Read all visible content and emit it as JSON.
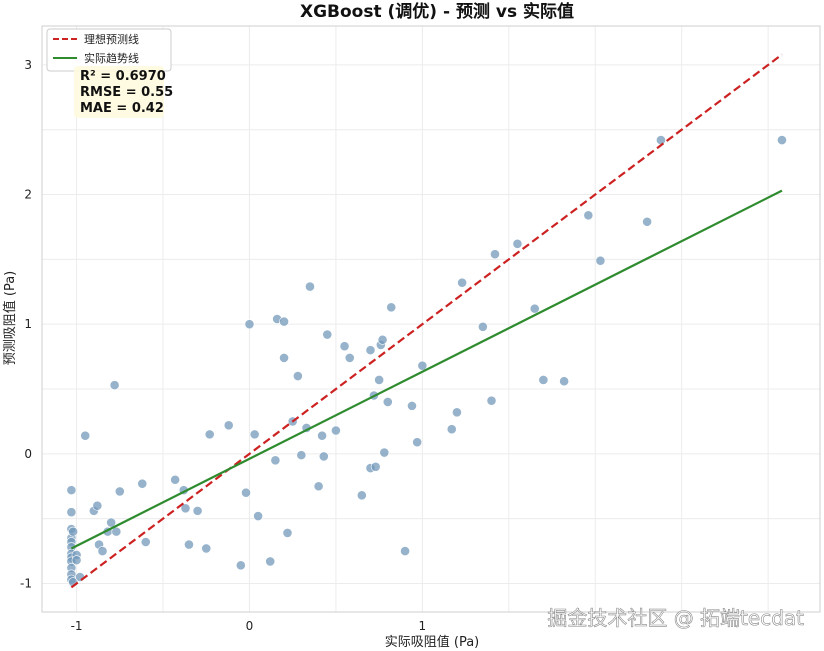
{
  "chart_data": {
    "type": "scatter",
    "title": "XGBoost (调优) - 预测 vs 实际值",
    "xlabel": "实际吸阻值 (Pa)",
    "ylabel": "预测吸阻值 (Pa)",
    "xlim": [
      -1.2,
      3.3
    ],
    "ylim": [
      -1.22,
      3.3
    ],
    "xticks": [
      -1,
      0,
      1
    ],
    "yticks": [
      -1,
      0,
      1,
      2,
      3
    ],
    "grid": true,
    "legend_position": "top-left",
    "series": [
      {
        "name": "理想预测线",
        "kind": "line",
        "style": "dashed",
        "color": "#cc2222",
        "x": [
          -1.03,
          3.08
        ],
        "y": [
          -1.03,
          3.08
        ]
      },
      {
        "name": "实际趋势线",
        "kind": "line",
        "style": "solid",
        "color": "#2e8b2e",
        "x": [
          -1.03,
          3.08
        ],
        "y": [
          -0.73,
          2.03
        ]
      },
      {
        "kind": "scatter",
        "color": "#6f96b8",
        "x": [
          -1.03,
          -1.03,
          -1.03,
          -1.03,
          -1.03,
          -1.03,
          -1.03,
          -1.03,
          -1.03,
          -1.03,
          -1.03,
          -1.03,
          -1.02,
          -1.02,
          -1.0,
          -1.0,
          -0.98,
          -0.95,
          -0.9,
          -0.88,
          -0.87,
          -0.85,
          -0.82,
          -0.8,
          -0.78,
          -0.77,
          -0.75,
          -0.62,
          -0.6,
          -0.43,
          -0.38,
          -0.37,
          -0.35,
          -0.3,
          -0.25,
          -0.23,
          -0.12,
          -0.05,
          -0.02,
          0.0,
          0.03,
          0.05,
          0.12,
          0.15,
          0.16,
          0.2,
          0.2,
          0.22,
          0.25,
          0.28,
          0.3,
          0.33,
          0.35,
          0.4,
          0.42,
          0.43,
          0.45,
          0.5,
          0.55,
          0.58,
          0.65,
          0.7,
          0.7,
          0.72,
          0.73,
          0.75,
          0.76,
          0.77,
          0.78,
          0.8,
          0.82,
          0.9,
          0.94,
          0.97,
          1.0,
          1.17,
          1.2,
          1.23,
          1.35,
          1.4,
          1.42,
          1.55,
          1.65,
          1.7,
          1.82,
          1.96,
          2.03,
          2.3,
          2.38,
          3.08
        ],
        "y": [
          -0.28,
          -0.45,
          -0.58,
          -0.65,
          -0.68,
          -0.72,
          -0.77,
          -0.8,
          -0.83,
          -0.88,
          -0.93,
          -0.97,
          -0.6,
          -0.99,
          -0.78,
          -0.82,
          -0.95,
          0.14,
          -0.44,
          -0.4,
          -0.7,
          -0.75,
          -0.6,
          -0.53,
          0.53,
          -0.6,
          -0.29,
          -0.23,
          -0.68,
          -0.2,
          -0.28,
          -0.42,
          -0.7,
          -0.44,
          -0.73,
          0.15,
          0.22,
          -0.86,
          -0.3,
          1.0,
          0.15,
          -0.48,
          -0.83,
          -0.05,
          1.04,
          0.74,
          1.02,
          -0.61,
          0.25,
          0.6,
          -0.01,
          0.2,
          1.29,
          -0.25,
          0.14,
          -0.02,
          0.92,
          0.18,
          0.83,
          0.74,
          -0.32,
          0.8,
          -0.11,
          0.45,
          -0.1,
          0.57,
          0.84,
          0.88,
          0.01,
          0.4,
          1.13,
          -0.75,
          0.37,
          0.09,
          0.68,
          0.19,
          0.32,
          1.32,
          0.98,
          0.41,
          1.54,
          1.62,
          1.12,
          0.57,
          0.56,
          1.84,
          1.49,
          1.79,
          2.42,
          2.42
        ]
      }
    ],
    "annotations": [
      "R² = 0.6970",
      "RMSE = 0.55",
      "MAE = 0.42"
    ]
  },
  "watermark": "掘金技术社区 @ 拓端tecdat"
}
